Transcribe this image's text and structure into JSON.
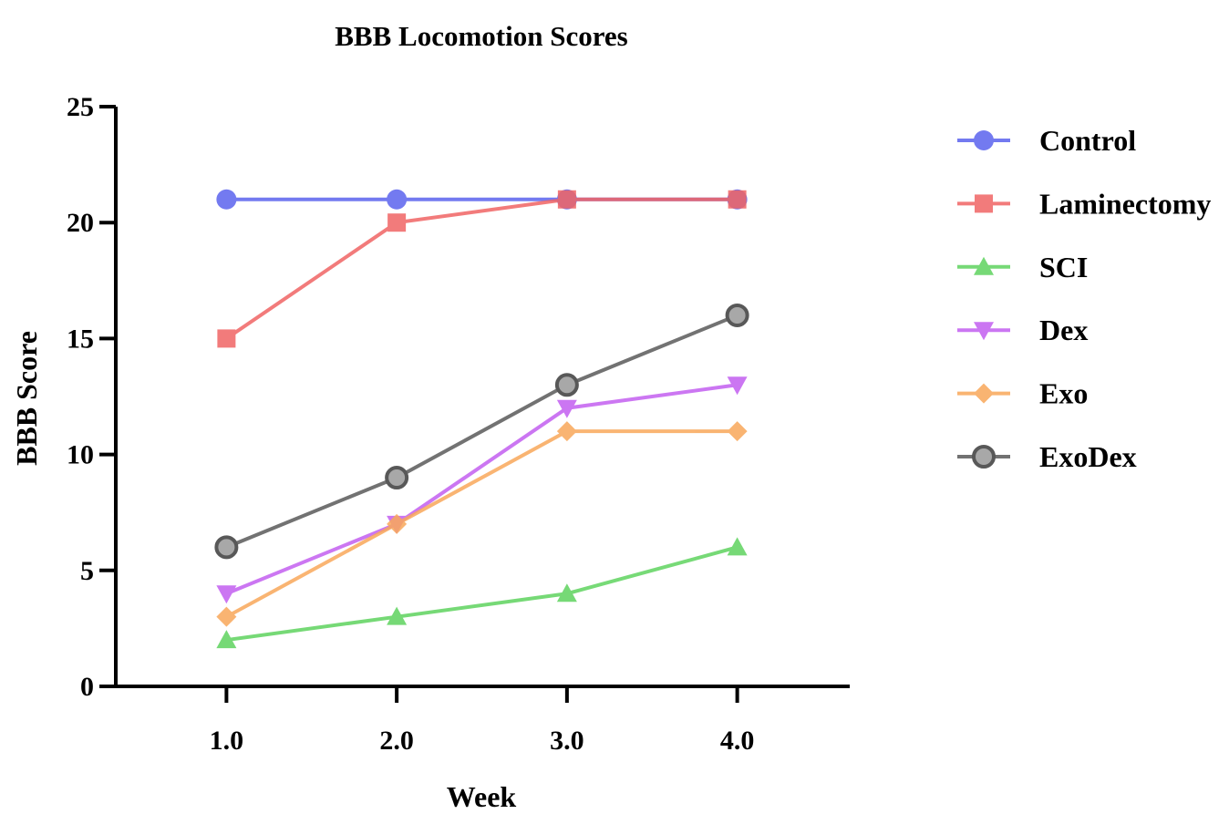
{
  "chart_data": {
    "type": "line",
    "title": "BBB Locomotion Scores",
    "xlabel": "Week",
    "ylabel": "BBB Score",
    "x": [
      1.0,
      2.0,
      3.0,
      4.0
    ],
    "x_tick_labels": [
      "1.0",
      "2.0",
      "3.0",
      "4.0"
    ],
    "xlim": [
      0.35,
      4.65
    ],
    "y_ticks": [
      0,
      5,
      10,
      15,
      20,
      25
    ],
    "y_tick_labels": [
      "0",
      "5",
      "10",
      "15",
      "20",
      "25"
    ],
    "ylim": [
      0,
      25
    ],
    "grid": false,
    "legend_position": "right",
    "series": [
      {
        "name": "Control",
        "values": [
          21,
          21,
          21,
          21
        ],
        "color": "#5b63ee",
        "marker": "circle"
      },
      {
        "name": "Laminectomy",
        "values": [
          15,
          20,
          21,
          21
        ],
        "color": "#f06565",
        "marker": "square"
      },
      {
        "name": "SCI",
        "values": [
          2,
          3,
          4,
          6
        ],
        "color": "#5fd35f",
        "marker": "triangle-up"
      },
      {
        "name": "Dex",
        "values": [
          4,
          7,
          12,
          13
        ],
        "color": "#c35ff0",
        "marker": "triangle-down"
      },
      {
        "name": "Exo",
        "values": [
          3,
          7,
          11,
          11
        ],
        "color": "#f9a85a",
        "marker": "diamond"
      },
      {
        "name": "ExoDex",
        "values": [
          6,
          9,
          13,
          16
        ],
        "color": "#5a5a5a",
        "marker": "ring"
      }
    ]
  }
}
